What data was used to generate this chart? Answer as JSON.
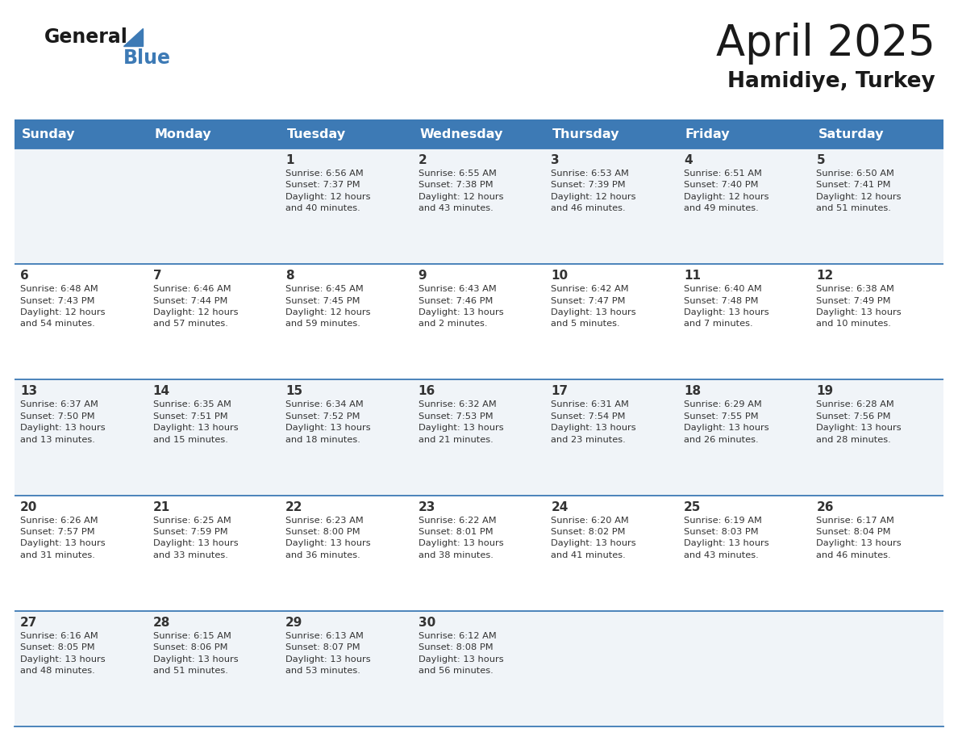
{
  "title": "April 2025",
  "subtitle": "Hamidiye, Turkey",
  "days_of_week": [
    "Sunday",
    "Monday",
    "Tuesday",
    "Wednesday",
    "Thursday",
    "Friday",
    "Saturday"
  ],
  "header_bg_color": "#3d7ab5",
  "header_text_color": "#ffffff",
  "cell_bg_even": "#f0f4f8",
  "cell_bg_odd": "#ffffff",
  "cell_border_color": "#3d7ab5",
  "day_num_color": "#333333",
  "info_text_color": "#333333",
  "title_color": "#1a1a1a",
  "subtitle_color": "#1a1a1a",
  "logo_general_color": "#1a1a1a",
  "logo_blue_color": "#3d7ab5",
  "logo_triangle_color": "#3d7ab5",
  "calendar_data": [
    [
      {
        "day": null,
        "info": null
      },
      {
        "day": null,
        "info": null
      },
      {
        "day": 1,
        "info": "Sunrise: 6:56 AM\nSunset: 7:37 PM\nDaylight: 12 hours\nand 40 minutes."
      },
      {
        "day": 2,
        "info": "Sunrise: 6:55 AM\nSunset: 7:38 PM\nDaylight: 12 hours\nand 43 minutes."
      },
      {
        "day": 3,
        "info": "Sunrise: 6:53 AM\nSunset: 7:39 PM\nDaylight: 12 hours\nand 46 minutes."
      },
      {
        "day": 4,
        "info": "Sunrise: 6:51 AM\nSunset: 7:40 PM\nDaylight: 12 hours\nand 49 minutes."
      },
      {
        "day": 5,
        "info": "Sunrise: 6:50 AM\nSunset: 7:41 PM\nDaylight: 12 hours\nand 51 minutes."
      }
    ],
    [
      {
        "day": 6,
        "info": "Sunrise: 6:48 AM\nSunset: 7:43 PM\nDaylight: 12 hours\nand 54 minutes."
      },
      {
        "day": 7,
        "info": "Sunrise: 6:46 AM\nSunset: 7:44 PM\nDaylight: 12 hours\nand 57 minutes."
      },
      {
        "day": 8,
        "info": "Sunrise: 6:45 AM\nSunset: 7:45 PM\nDaylight: 12 hours\nand 59 minutes."
      },
      {
        "day": 9,
        "info": "Sunrise: 6:43 AM\nSunset: 7:46 PM\nDaylight: 13 hours\nand 2 minutes."
      },
      {
        "day": 10,
        "info": "Sunrise: 6:42 AM\nSunset: 7:47 PM\nDaylight: 13 hours\nand 5 minutes."
      },
      {
        "day": 11,
        "info": "Sunrise: 6:40 AM\nSunset: 7:48 PM\nDaylight: 13 hours\nand 7 minutes."
      },
      {
        "day": 12,
        "info": "Sunrise: 6:38 AM\nSunset: 7:49 PM\nDaylight: 13 hours\nand 10 minutes."
      }
    ],
    [
      {
        "day": 13,
        "info": "Sunrise: 6:37 AM\nSunset: 7:50 PM\nDaylight: 13 hours\nand 13 minutes."
      },
      {
        "day": 14,
        "info": "Sunrise: 6:35 AM\nSunset: 7:51 PM\nDaylight: 13 hours\nand 15 minutes."
      },
      {
        "day": 15,
        "info": "Sunrise: 6:34 AM\nSunset: 7:52 PM\nDaylight: 13 hours\nand 18 minutes."
      },
      {
        "day": 16,
        "info": "Sunrise: 6:32 AM\nSunset: 7:53 PM\nDaylight: 13 hours\nand 21 minutes."
      },
      {
        "day": 17,
        "info": "Sunrise: 6:31 AM\nSunset: 7:54 PM\nDaylight: 13 hours\nand 23 minutes."
      },
      {
        "day": 18,
        "info": "Sunrise: 6:29 AM\nSunset: 7:55 PM\nDaylight: 13 hours\nand 26 minutes."
      },
      {
        "day": 19,
        "info": "Sunrise: 6:28 AM\nSunset: 7:56 PM\nDaylight: 13 hours\nand 28 minutes."
      }
    ],
    [
      {
        "day": 20,
        "info": "Sunrise: 6:26 AM\nSunset: 7:57 PM\nDaylight: 13 hours\nand 31 minutes."
      },
      {
        "day": 21,
        "info": "Sunrise: 6:25 AM\nSunset: 7:59 PM\nDaylight: 13 hours\nand 33 minutes."
      },
      {
        "day": 22,
        "info": "Sunrise: 6:23 AM\nSunset: 8:00 PM\nDaylight: 13 hours\nand 36 minutes."
      },
      {
        "day": 23,
        "info": "Sunrise: 6:22 AM\nSunset: 8:01 PM\nDaylight: 13 hours\nand 38 minutes."
      },
      {
        "day": 24,
        "info": "Sunrise: 6:20 AM\nSunset: 8:02 PM\nDaylight: 13 hours\nand 41 minutes."
      },
      {
        "day": 25,
        "info": "Sunrise: 6:19 AM\nSunset: 8:03 PM\nDaylight: 13 hours\nand 43 minutes."
      },
      {
        "day": 26,
        "info": "Sunrise: 6:17 AM\nSunset: 8:04 PM\nDaylight: 13 hours\nand 46 minutes."
      }
    ],
    [
      {
        "day": 27,
        "info": "Sunrise: 6:16 AM\nSunset: 8:05 PM\nDaylight: 13 hours\nand 48 minutes."
      },
      {
        "day": 28,
        "info": "Sunrise: 6:15 AM\nSunset: 8:06 PM\nDaylight: 13 hours\nand 51 minutes."
      },
      {
        "day": 29,
        "info": "Sunrise: 6:13 AM\nSunset: 8:07 PM\nDaylight: 13 hours\nand 53 minutes."
      },
      {
        "day": 30,
        "info": "Sunrise: 6:12 AM\nSunset: 8:08 PM\nDaylight: 13 hours\nand 56 minutes."
      },
      {
        "day": null,
        "info": null
      },
      {
        "day": null,
        "info": null
      },
      {
        "day": null,
        "info": null
      }
    ]
  ]
}
